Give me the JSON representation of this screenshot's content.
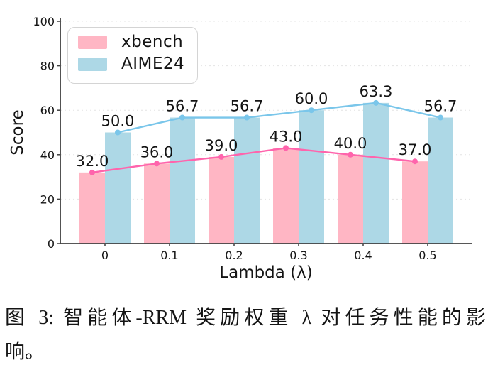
{
  "caption": {
    "line1": "图 3: 智能体-RRM 奖励权重 λ 对任务性能的影",
    "line2": "响。"
  },
  "chart_data": {
    "type": "bar",
    "subtype": "grouped-bars-with-line-overlay",
    "categories": [
      "0",
      "0.1",
      "0.2",
      "0.3",
      "0.4",
      "0.5"
    ],
    "series": [
      {
        "name": "xbench",
        "values": [
          32.0,
          36.0,
          39.0,
          43.0,
          40.0,
          37.0
        ],
        "bar_color": "#FFB6C4",
        "line_color": "#FF64AC"
      },
      {
        "name": "AIME24",
        "values": [
          50.0,
          56.7,
          56.7,
          60.0,
          63.3,
          56.7
        ],
        "bar_color": "#ADD8E6",
        "line_color": "#7AC6EA"
      }
    ],
    "title": "",
    "xlabel": "Lambda (λ)",
    "ylabel": "Score",
    "ylim": [
      0,
      100
    ],
    "yticks": [
      0,
      20,
      40,
      60,
      80,
      100
    ],
    "grid": "horizontal-dashed",
    "grid_color": "#e4e4e4",
    "axis_color": "#3f3f3f",
    "value_labels": true,
    "legend_position": "upper-left"
  }
}
